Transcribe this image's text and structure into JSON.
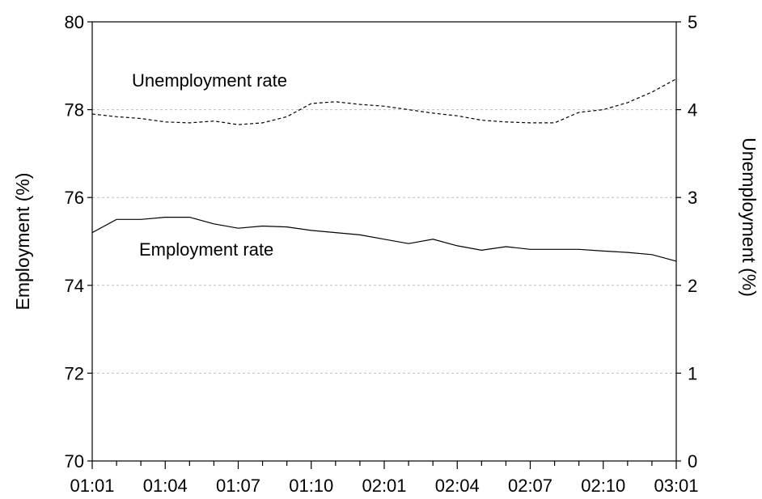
{
  "chart_data": {
    "type": "line",
    "title": "",
    "x": [
      "01:01",
      "01:02",
      "01:03",
      "01:04",
      "01:05",
      "01:06",
      "01:07",
      "01:08",
      "01:09",
      "01:10",
      "01:11",
      "01:12",
      "02:01",
      "02:02",
      "02:03",
      "02:04",
      "02:05",
      "02:06",
      "02:07",
      "02:08",
      "02:09",
      "02:10",
      "02:11",
      "02:12",
      "03:01"
    ],
    "x_tick_labels": [
      "01:01",
      "01:04",
      "01:07",
      "01:10",
      "02:01",
      "02:04",
      "02:07",
      "02:10",
      "03:01"
    ],
    "ylabel_left": "Employment (%)",
    "ylabel_right": "Unemployment (%)",
    "ylim_left": [
      70,
      80
    ],
    "ylim_right": [
      0,
      5
    ],
    "y_ticks_left": [
      70,
      72,
      74,
      76,
      78,
      80
    ],
    "y_ticks_right": [
      0,
      1,
      2,
      3,
      4,
      5
    ],
    "grid": "horizontal dashed",
    "series": [
      {
        "name": "Employment rate",
        "axis": "left",
        "style": "solid",
        "values": [
          75.2,
          75.5,
          75.5,
          75.55,
          75.55,
          75.4,
          75.3,
          75.35,
          75.33,
          75.25,
          75.2,
          75.15,
          75.05,
          74.95,
          75.05,
          74.9,
          74.8,
          74.88,
          74.82,
          74.82,
          74.82,
          74.78,
          74.75,
          74.7,
          74.55
        ]
      },
      {
        "name": "Unemployment rate",
        "axis": "right",
        "style": "dashed",
        "values": [
          3.95,
          3.92,
          3.9,
          3.86,
          3.85,
          3.87,
          3.83,
          3.85,
          3.92,
          4.07,
          4.09,
          4.06,
          4.04,
          4.0,
          3.96,
          3.93,
          3.88,
          3.86,
          3.85,
          3.85,
          3.97,
          4.0,
          4.08,
          4.2,
          4.35
        ]
      }
    ],
    "annotations": [
      {
        "text": "Unemployment rate",
        "series": "Unemployment rate"
      },
      {
        "text": "Employment rate",
        "series": "Employment rate"
      }
    ]
  }
}
